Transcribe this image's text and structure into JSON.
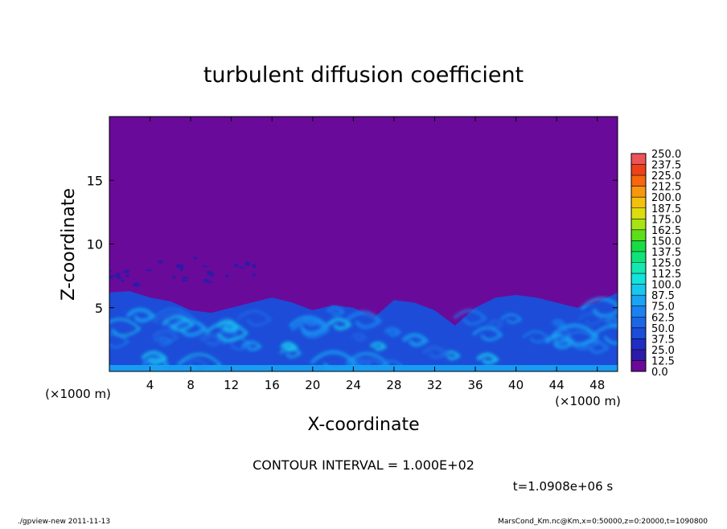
{
  "chart_data": {
    "type": "heatmap",
    "title": "turbulent diffusion coefficient",
    "xlabel": "X-coordinate",
    "ylabel": "Z-coordinate",
    "x_unit": "(×1000 m)",
    "z_unit": "(×1000 m)",
    "xlim": [
      0,
      50000
    ],
    "ylim": [
      0,
      20000
    ],
    "x_ticks": [
      4,
      8,
      12,
      16,
      20,
      24,
      28,
      32,
      36,
      40,
      44,
      48
    ],
    "y_ticks": [
      5,
      10,
      15
    ],
    "contour_interval_text": "CONTOUR INTERVAL = 1.000E+02",
    "time_text": "t=1.0908e+06 s",
    "footer_left": "./gpview-new  2011-11-13",
    "footer_right": "MarsCond_Km.nc@Km,x=0:50000,z=0:20000,t=1090800",
    "colorbar": {
      "levels": [
        "0.0",
        "12.5",
        "25.0",
        "37.5",
        "50.0",
        "62.5",
        "75.0",
        "87.5",
        "100.0",
        "112.5",
        "125.0",
        "137.5",
        "150.0",
        "162.5",
        "175.0",
        "187.5",
        "200.0",
        "212.5",
        "225.0",
        "237.5",
        "250.0"
      ],
      "colors": [
        "#6a0a9a",
        "#2d1aa8",
        "#1e2ec4",
        "#1c4cd8",
        "#1c66e6",
        "#1a82f0",
        "#18a4f4",
        "#16c8ee",
        "#14e2dc",
        "#12e8b0",
        "#10e27a",
        "#18dc44",
        "#5ede18",
        "#a6e414",
        "#dcdc10",
        "#f4c00e",
        "#f8960e",
        "#f6660e",
        "#f0401a",
        "#ec5458",
        "#f29aa0"
      ]
    },
    "background_color": "#6a0a9a",
    "turbulent_layer": {
      "description_values": "Km field is ~0 (purple) above the boundary layer; boundary layer top varies between about 3.5 and 6.5 km with values 12.5-75 inside, locally up to ~100 near the surface",
      "top_km_x": [
        0,
        2,
        4,
        6,
        8,
        10,
        12,
        14,
        16,
        18,
        20,
        22,
        24,
        26,
        28,
        30,
        32,
        34,
        36,
        38,
        40,
        42,
        44,
        46,
        48,
        50
      ],
      "top_km_z": [
        6.2,
        6.3,
        5.8,
        5.5,
        4.8,
        4.6,
        5.0,
        5.4,
        5.8,
        5.4,
        4.8,
        5.2,
        5.0,
        4.2,
        5.6,
        5.4,
        4.8,
        3.6,
        5.0,
        5.8,
        6.0,
        5.8,
        5.4,
        5.0,
        5.4,
        6.2
      ]
    }
  }
}
